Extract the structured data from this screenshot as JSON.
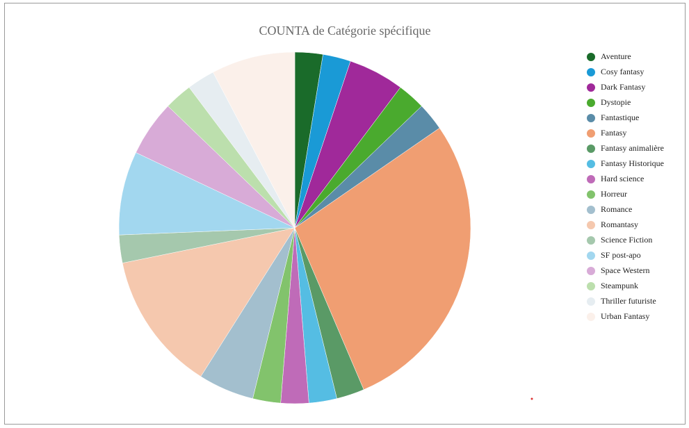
{
  "chart_data": {
    "type": "pie",
    "title": "COUNTA de Catégorie spécifique",
    "categories": [
      "Aventure",
      "Cosy fantasy",
      "Dark Fantasy",
      "Dystopie",
      "Fantastique",
      "Fantasy",
      "Fantasy animalière",
      "Fantasy Historique",
      "Hard science",
      "Horreur",
      "Romance",
      "Romantasy",
      "Science Fiction",
      "SF post-apo",
      "Space Western",
      "Steampunk",
      "Thriller futuriste",
      "Urban Fantasy"
    ],
    "values": [
      1,
      1,
      2,
      1,
      1,
      11,
      1,
      1,
      1,
      1,
      2,
      5,
      1,
      3,
      2,
      1,
      1,
      3
    ],
    "colors": [
      "#1a6b2a",
      "#1a9ad6",
      "#a0299a",
      "#4aaa2e",
      "#5a8ca8",
      "#f09e72",
      "#5a9a66",
      "#55bde3",
      "#bf6bb8",
      "#82c36c",
      "#a3bfce",
      "#f5c8ae",
      "#a5c8ad",
      "#a2d7ef",
      "#d8abd7",
      "#bcdfad",
      "#e6edf1",
      "#fbf0ea"
    ],
    "legend": "right"
  }
}
